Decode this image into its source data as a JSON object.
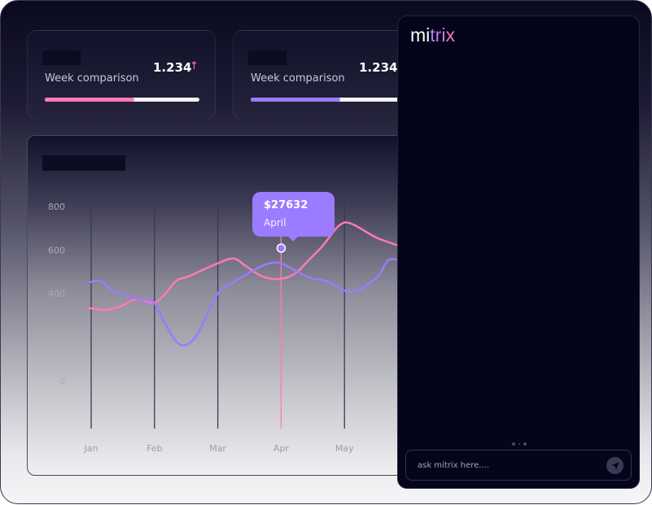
{
  "cards": [
    {
      "label": "Week comparison",
      "value": "1.234",
      "trend_icon": "arrow-up-icon",
      "trend": "↑",
      "progress": 0.58,
      "color": "#ff7ab5"
    },
    {
      "label": "Week comparison",
      "value": "1.234",
      "progress": 0.58,
      "color": "#9b7bff"
    }
  ],
  "chart_data": {
    "type": "line",
    "categories": [
      "Jan",
      "Feb",
      "Mar",
      "Apr",
      "May"
    ],
    "y_ticks": [
      "800",
      "600",
      "400",
      "200",
      "0"
    ],
    "ylim": [
      0,
      800
    ],
    "series": [
      {
        "name": "pink",
        "color": "#ff7ab5",
        "points": [
          [
            -0.03,
            333
          ],
          [
            0.26,
            325
          ],
          [
            0.51,
            348
          ],
          [
            0.71,
            374
          ],
          [
            0.99,
            359
          ],
          [
            1.16,
            396
          ],
          [
            1.35,
            460
          ],
          [
            1.54,
            479
          ],
          [
            1.99,
            538
          ],
          [
            2.25,
            561
          ],
          [
            2.44,
            527
          ],
          [
            2.7,
            479
          ],
          [
            2.96,
            467
          ],
          [
            3.21,
            490
          ],
          [
            3.47,
            564
          ],
          [
            3.66,
            621
          ],
          [
            3.92,
            714
          ],
          [
            4.11,
            721
          ],
          [
            4.5,
            658
          ],
          [
            4.85,
            621
          ]
        ]
      },
      {
        "name": "purple",
        "color": "#9b7bff",
        "points": [
          [
            -0.03,
            452
          ],
          [
            0.15,
            456
          ],
          [
            0.39,
            407
          ],
          [
            0.77,
            374
          ],
          [
            0.99,
            359
          ],
          [
            1.16,
            265
          ],
          [
            1.41,
            164
          ],
          [
            1.67,
            209
          ],
          [
            1.99,
            396
          ],
          [
            2.25,
            452
          ],
          [
            2.7,
            527
          ],
          [
            2.96,
            542
          ],
          [
            3.21,
            508
          ],
          [
            3.47,
            471
          ],
          [
            3.73,
            456
          ],
          [
            4.11,
            407
          ],
          [
            4.5,
            471
          ],
          [
            4.69,
            553
          ],
          [
            4.85,
            553
          ]
        ]
      }
    ],
    "highlight": {
      "category": "Apr",
      "index": 3,
      "value": 609,
      "amount": "$27632",
      "label": "April"
    }
  },
  "assistant": {
    "logo_part1": "mi",
    "logo_part2": "trix",
    "input_placeholder": "ask mitrix here....",
    "send_icon": "send-icon"
  }
}
